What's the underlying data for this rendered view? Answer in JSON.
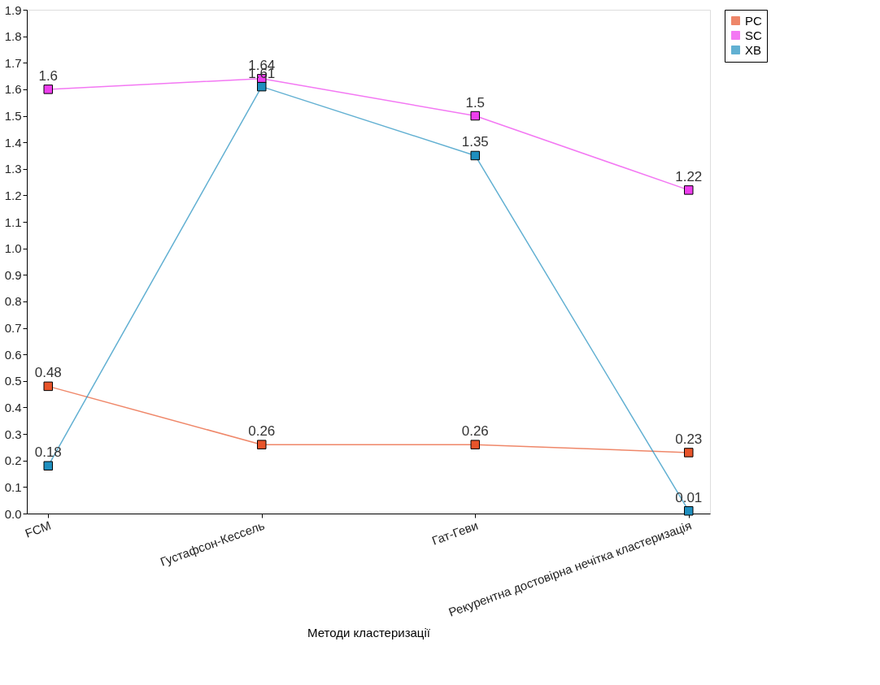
{
  "chart_data": {
    "type": "line",
    "xlabel": "Методи кластеризації",
    "categories": [
      "FCM",
      "Густафсон-Кессель",
      "Гат-Геви",
      "Рекурентна достовірна нечітка кластеризація"
    ],
    "series": [
      {
        "name": "PC",
        "color": "#e8542a",
        "values": [
          0.48,
          0.26,
          0.26,
          0.23
        ]
      },
      {
        "name": "SC",
        "color": "#ee3fee",
        "values": [
          1.6,
          1.64,
          1.5,
          1.22
        ]
      },
      {
        "name": "XB",
        "color": "#1f8fbf",
        "values": [
          0.18,
          1.61,
          1.35,
          0.01
        ]
      }
    ],
    "ylim": [
      0,
      1.9
    ],
    "yticks": [
      {
        "value": 0,
        "label": "0.0"
      },
      0.1,
      0.2,
      0.3,
      0.4,
      0.5,
      0.6,
      0.7,
      0.8,
      0.9,
      {
        "value": 1,
        "label": "1.0"
      },
      1.1,
      1.2,
      1.3,
      1.4,
      1.5,
      1.6,
      1.7,
      1.8,
      1.9
    ],
    "data_labels": true,
    "marker": "square",
    "line_style": "solid",
    "grid": false,
    "legend": "top right"
  }
}
